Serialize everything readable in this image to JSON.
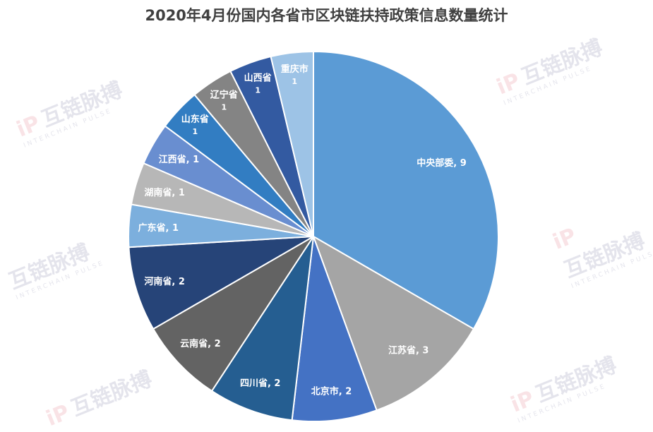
{
  "title": "2020年4月份国内各省市区块链扶持政策信息数量统计",
  "watermark": {
    "main": "互链脉搏",
    "sub": "INTERCHAIN PULSE",
    "glyph": "iP"
  },
  "chart_data": {
    "type": "pie",
    "title": "2020年4月份国内各省市区块链扶持政策信息数量统计",
    "start_angle_deg": 0,
    "direction": "clockwise",
    "slices": [
      {
        "label": "中央部委",
        "value": 9,
        "display": "中央部委, 9",
        "color": "#5b9bd5"
      },
      {
        "label": "江苏省",
        "value": 3,
        "display": "江苏省, 3",
        "color": "#a5a5a5"
      },
      {
        "label": "北京市",
        "value": 2,
        "display": "北京市, 2",
        "color": "#4472c4"
      },
      {
        "label": "四川省",
        "value": 2,
        "display": "四川省, 2",
        "color": "#255e91"
      },
      {
        "label": "云南省",
        "value": 2,
        "display": "云南省, 2",
        "color": "#636363"
      },
      {
        "label": "河南省",
        "value": 2,
        "display": "河南省, 2",
        "color": "#264478"
      },
      {
        "label": "广东省",
        "value": 1,
        "display": "广东省, 1",
        "color": "#7cafdd"
      },
      {
        "label": "湖南省",
        "value": 1,
        "display": "湖南省, 1",
        "color": "#b7b7b7"
      },
      {
        "label": "江西省",
        "value": 1,
        "display": "江西省, 1",
        "color": "#698ed0"
      },
      {
        "label": "山东省",
        "value": 1,
        "display": [
          "山东省",
          "1"
        ],
        "color": "#327dc2"
      },
      {
        "label": "辽宁省",
        "value": 1,
        "display": [
          "辽宁省",
          "1"
        ],
        "color": "#848484"
      },
      {
        "label": "山西省",
        "value": 1,
        "display": [
          "山西省",
          "1"
        ],
        "color": "#335aa1"
      },
      {
        "label": "重庆市",
        "value": 1,
        "display": [
          "重庆市",
          "1"
        ],
        "color": "#9dc3e6"
      }
    ]
  }
}
